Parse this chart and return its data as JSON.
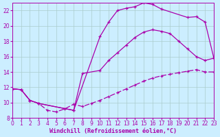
{
  "background_color": "#cceeff",
  "grid_color": "#aacccc",
  "line_color": "#aa00aa",
  "xlim": [
    0,
    23
  ],
  "ylim": [
    8,
    23
  ],
  "xlabel": "Windchill (Refroidissement éolien,°C)",
  "xlabel_fontsize": 6,
  "xticks": [
    0,
    1,
    2,
    3,
    4,
    5,
    6,
    7,
    8,
    9,
    10,
    11,
    12,
    13,
    14,
    15,
    16,
    17,
    18,
    19,
    20,
    21,
    22,
    23
  ],
  "yticks": [
    8,
    10,
    12,
    14,
    16,
    18,
    20,
    22
  ],
  "tick_fontsize": 5.5,
  "curve_upper_x": [
    0,
    1,
    2,
    3,
    7,
    10,
    11,
    12,
    13,
    14,
    15,
    16,
    17,
    20,
    21,
    22,
    23
  ],
  "curve_upper_y": [
    11.8,
    11.7,
    10.3,
    9.9,
    9.0,
    18.6,
    20.5,
    22.0,
    22.3,
    22.5,
    23.0,
    22.8,
    22.2,
    21.1,
    21.2,
    20.5,
    15.8
  ],
  "curve_mid_x": [
    0,
    1,
    2,
    3,
    7,
    8,
    10,
    11,
    12,
    13,
    14,
    15,
    16,
    17,
    18,
    19,
    20,
    21,
    22,
    23
  ],
  "curve_mid_y": [
    11.8,
    11.7,
    10.3,
    9.9,
    9.0,
    13.8,
    14.2,
    15.5,
    16.5,
    17.5,
    18.5,
    19.2,
    19.5,
    19.3,
    19.0,
    18.0,
    17.0,
    16.0,
    15.5,
    15.8
  ],
  "curve_lower_x": [
    0,
    1,
    2,
    3,
    4,
    5,
    6,
    7,
    8,
    9,
    10,
    11,
    12,
    13,
    14,
    15,
    16,
    17,
    18,
    19,
    20,
    21,
    22,
    23
  ],
  "curve_lower_y": [
    11.8,
    11.7,
    10.3,
    9.9,
    9.0,
    8.8,
    9.2,
    9.8,
    9.5,
    9.9,
    10.3,
    10.8,
    11.3,
    11.8,
    12.3,
    12.8,
    13.2,
    13.5,
    13.7,
    13.9,
    14.1,
    14.3,
    14.0,
    14.0
  ]
}
